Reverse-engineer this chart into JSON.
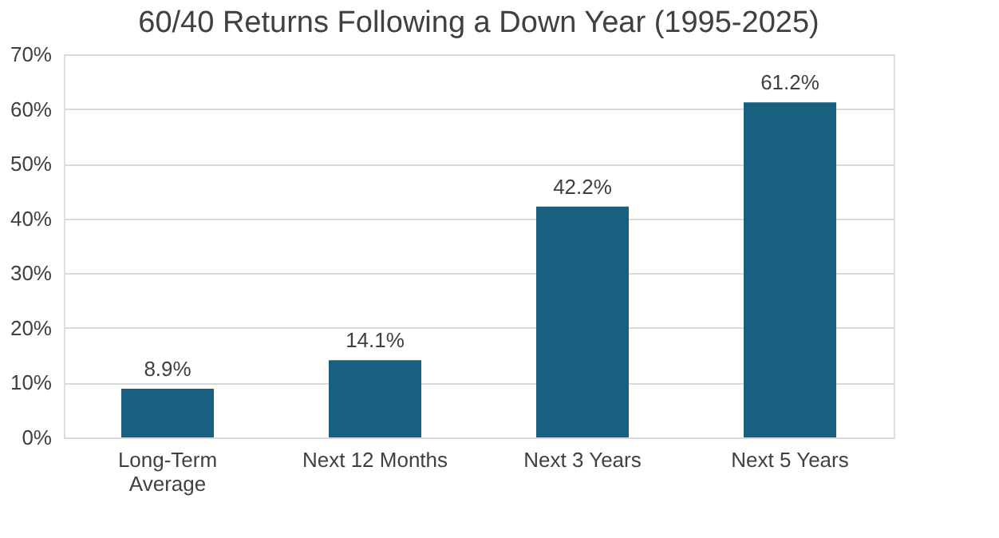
{
  "chart_data": {
    "type": "bar",
    "title": "60/40 Returns Following a Down Year (1995-2025)",
    "categories": [
      "Long-Term Average",
      "Next 12 Months",
      "Next 3 Years",
      "Next 5 Years"
    ],
    "values": [
      8.9,
      14.1,
      42.2,
      61.2
    ],
    "value_labels": [
      "8.9%",
      "14.1%",
      "42.2%",
      "61.2%"
    ],
    "color": "#185f80",
    "ylim": [
      0,
      70
    ],
    "yticks": [
      {
        "value": 0,
        "label": "0%"
      },
      {
        "value": 10,
        "label": "10%"
      },
      {
        "value": 20,
        "label": "20%"
      },
      {
        "value": 30,
        "label": "30%"
      },
      {
        "value": 40,
        "label": "40%"
      },
      {
        "value": 50,
        "label": "50%"
      },
      {
        "value": 60,
        "label": "60%"
      },
      {
        "value": 70,
        "label": "70%"
      }
    ],
    "grid": "y"
  }
}
